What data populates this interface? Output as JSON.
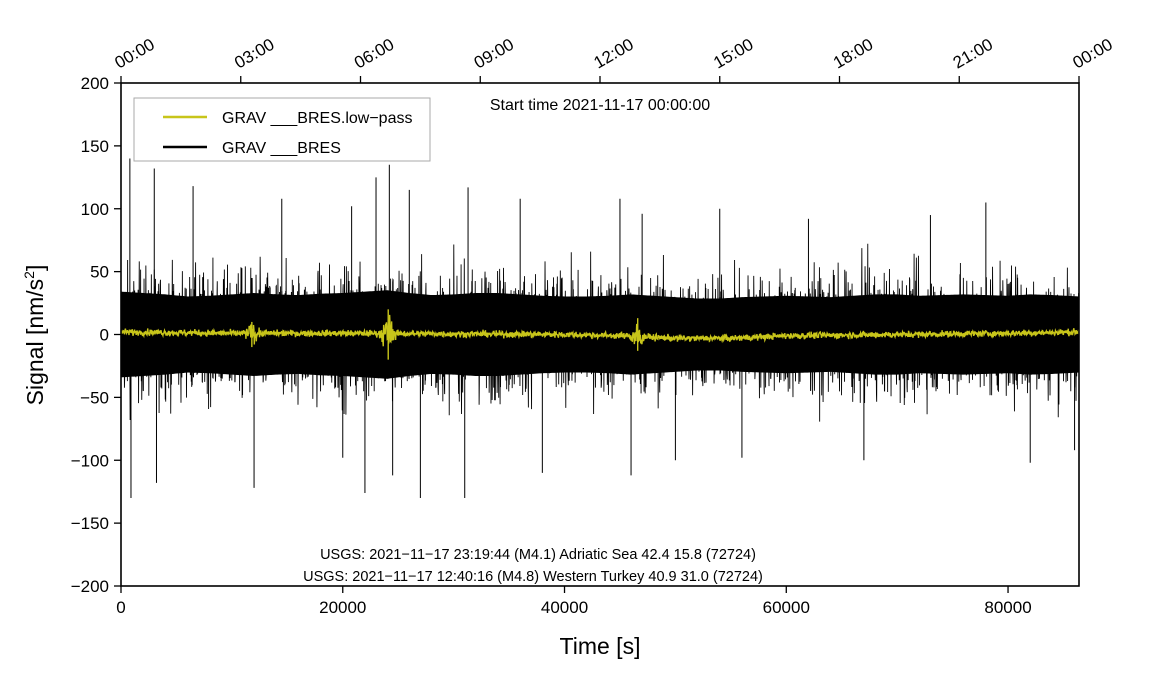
{
  "chart_data": {
    "type": "line",
    "start_time": "Start time 2021-11-17 00:00:00",
    "xlabel": "Time [s]",
    "ylabel_main": "Signal [nm/s",
    "ylabel_sup": "2",
    "ylabel_close": "]",
    "xlim": [
      0,
      86400
    ],
    "ylim": [
      -200,
      200
    ],
    "xticks": [
      {
        "value": 0,
        "label": "0"
      },
      {
        "value": 20000,
        "label": "20000"
      },
      {
        "value": 40000,
        "label": "40000"
      },
      {
        "value": 60000,
        "label": "60000"
      },
      {
        "value": 80000,
        "label": "80000"
      }
    ],
    "yticks": [
      {
        "value": 200,
        "label": "200"
      },
      {
        "value": 150,
        "label": "150"
      },
      {
        "value": 100,
        "label": "100"
      },
      {
        "value": 50,
        "label": "50"
      },
      {
        "value": 0,
        "label": "0"
      },
      {
        "value": -50,
        "label": "−50"
      },
      {
        "value": -100,
        "label": "−100"
      },
      {
        "value": -150,
        "label": "−150"
      },
      {
        "value": -200,
        "label": "−200"
      }
    ],
    "top_ticks": [
      {
        "value": 0,
        "label": "00:00"
      },
      {
        "value": 10800,
        "label": "03:00"
      },
      {
        "value": 21600,
        "label": "06:00"
      },
      {
        "value": 32400,
        "label": "09:00"
      },
      {
        "value": 43200,
        "label": "12:00"
      },
      {
        "value": 54000,
        "label": "15:00"
      },
      {
        "value": 64800,
        "label": "18:00"
      },
      {
        "value": 75600,
        "label": "21:00"
      },
      {
        "value": 86400,
        "label": "00:00"
      }
    ],
    "legend": [
      {
        "label": "GRAV ___BRES.low−pass",
        "color": "#c8c51a"
      },
      {
        "label": "GRAV ___BRES",
        "color": "#000000"
      }
    ],
    "annotations": [
      "USGS: 2021−11−17 23:19:44 (M4.1) Adriatic Sea 42.4 15.8 (72724)",
      "USGS: 2021−11−17 12:40:16 (M4.8) Western Turkey 40.9 31.0 (72724)"
    ],
    "series": [
      {
        "name": "GRAV ___BRES",
        "color": "#000000",
        "envelope_x": [
          0,
          2000,
          4000,
          6000,
          8000,
          10000,
          12000,
          14000,
          16000,
          18000,
          20000,
          22000,
          24000,
          26000,
          28000,
          30000,
          32000,
          34000,
          36000,
          38000,
          40000,
          42000,
          44000,
          46000,
          48000,
          50000,
          52000,
          54000,
          56000,
          58000,
          60000,
          62000,
          64000,
          66000,
          68000,
          70000,
          72000,
          74000,
          76000,
          78000,
          80000,
          82000,
          84000,
          86400
        ],
        "envelope_amp": [
          62,
          60,
          58,
          55,
          56,
          58,
          60,
          58,
          57,
          59,
          60,
          62,
          64,
          60,
          57,
          58,
          60,
          60,
          58,
          56,
          55,
          55,
          56,
          58,
          56,
          54,
          52,
          52,
          54,
          55,
          56,
          55,
          54,
          56,
          58,
          58,
          56,
          57,
          58,
          57,
          56,
          58,
          57,
          55
        ],
        "spikes": [
          {
            "x": 800,
            "y": 140
          },
          {
            "x": 900,
            "y": -130
          },
          {
            "x": 3000,
            "y": 132
          },
          {
            "x": 3200,
            "y": -118
          },
          {
            "x": 6500,
            "y": 118
          },
          {
            "x": 12000,
            "y": -122
          },
          {
            "x": 14500,
            "y": 108
          },
          {
            "x": 20800,
            "y": 102
          },
          {
            "x": 20000,
            "y": -98
          },
          {
            "x": 22000,
            "y": -126
          },
          {
            "x": 23000,
            "y": 125
          },
          {
            "x": 24200,
            "y": 135
          },
          {
            "x": 24500,
            "y": -112
          },
          {
            "x": 26000,
            "y": 115
          },
          {
            "x": 27000,
            "y": -130
          },
          {
            "x": 31000,
            "y": -130
          },
          {
            "x": 31300,
            "y": 117
          },
          {
            "x": 36000,
            "y": 108
          },
          {
            "x": 38000,
            "y": -110
          },
          {
            "x": 45000,
            "y": 108
          },
          {
            "x": 46000,
            "y": -112
          },
          {
            "x": 47000,
            "y": 96
          },
          {
            "x": 50000,
            "y": -100
          },
          {
            "x": 54000,
            "y": 100
          },
          {
            "x": 56000,
            "y": -98
          },
          {
            "x": 62000,
            "y": 92
          },
          {
            "x": 67000,
            "y": -100
          },
          {
            "x": 73000,
            "y": 95
          },
          {
            "x": 78000,
            "y": 105
          },
          {
            "x": 82000,
            "y": -102
          },
          {
            "x": 86000,
            "y": -92
          }
        ]
      },
      {
        "name": "GRAV ___BRES.low−pass",
        "color": "#c8c51a",
        "baseline_x": [
          0,
          10000,
          20000,
          30000,
          40000,
          45000,
          50000,
          55000,
          60000,
          70000,
          80000,
          86400
        ],
        "baseline_y": [
          2,
          1,
          1,
          0.5,
          0,
          -1,
          -3,
          -3,
          -1,
          0,
          1,
          2
        ],
        "noise_amp": 2.5,
        "events": [
          {
            "x": 11800,
            "amp": 10
          },
          {
            "x": 24100,
            "amp": 20
          },
          {
            "x": 46600,
            "amp": 13
          }
        ]
      }
    ]
  }
}
